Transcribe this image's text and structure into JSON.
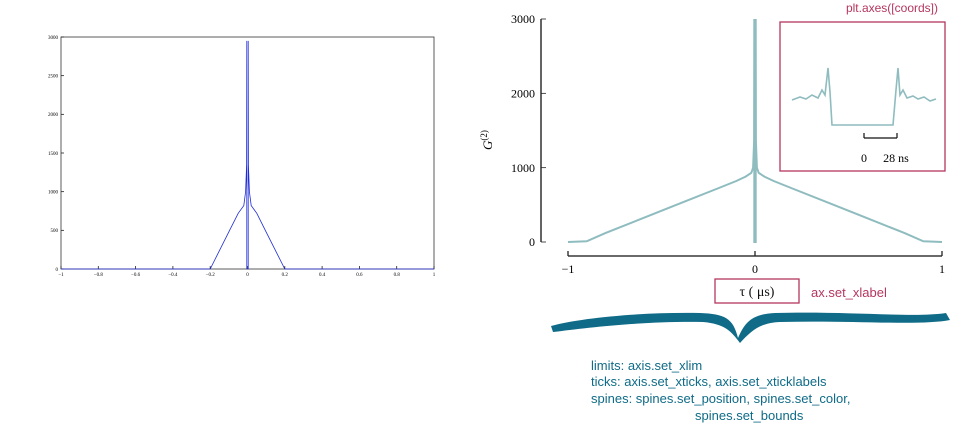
{
  "chart_data": [
    {
      "type": "line",
      "title": "",
      "xlabel": "",
      "ylabel": "",
      "xlim": [
        -1,
        1
      ],
      "ylim": [
        0,
        3000
      ],
      "xtick_labels": [
        "−1",
        "−0.8",
        "−0.6",
        "−0.4",
        "−0.2",
        "0",
        "0.2",
        "0.4",
        "0.6",
        "0.8",
        "1"
      ],
      "ytick_labels": [
        "0",
        "500",
        "1000",
        "1500",
        "2000",
        "2500",
        "3000"
      ],
      "color": "#1f2bd6",
      "series": [
        {
          "x": [
            -1,
            -0.8,
            -0.6,
            -0.5,
            -0.4,
            -0.3,
            -0.2,
            -0.1,
            -0.05,
            -0.02,
            -0.01,
            -0.005,
            -0.004,
            -0.004,
            0.004,
            0.004,
            0.005,
            0.01,
            0.02,
            0.05,
            0.1,
            0.2,
            0.3,
            0.4,
            0.5,
            0.6,
            0.8,
            1
          ],
          "y": [
            0,
            0,
            0,
            0,
            0,
            0,
            0,
            480,
            720,
            820,
            1000,
            1350,
            2950,
            0,
            0,
            2950,
            1350,
            1000,
            820,
            720,
            480,
            0,
            0,
            0,
            0,
            0,
            0,
            0
          ]
        }
      ]
    },
    {
      "type": "line",
      "title": "",
      "xlabel": "τ ( μs)",
      "ylabel": "G(2)",
      "ylabel_base": "G",
      "ylabel_sup": "(2)",
      "xlim": [
        -1,
        1
      ],
      "ylim": [
        0,
        3000
      ],
      "xtick_labels": [
        "−1",
        "0",
        "1"
      ],
      "ytick_labels": [
        "0",
        "1000",
        "2000",
        "3000"
      ],
      "color": "#8fbcbf",
      "series": [
        {
          "x": [
            -1,
            -0.9,
            -0.8,
            -0.6,
            -0.4,
            -0.2,
            -0.1,
            -0.05,
            -0.02,
            -0.01,
            -0.005,
            -0.004,
            -0.004,
            0.004,
            0.004,
            0.005,
            0.01,
            0.02,
            0.05,
            0.1,
            0.2,
            0.4,
            0.6,
            0.8,
            0.9,
            1
          ],
          "y": [
            0,
            10,
            120,
            320,
            520,
            720,
            820,
            880,
            930,
            1000,
            1350,
            3000,
            0,
            0,
            3000,
            1350,
            1000,
            930,
            880,
            820,
            720,
            520,
            320,
            120,
            10,
            0
          ]
        }
      ],
      "inset": {
        "xtick_label": "0",
        "scale_label": "28 ns",
        "label": "plt.axes([coords])"
      },
      "annotations": {
        "xlabel_note": "ax.set_xlabel",
        "notes": [
          "limits: axis.set_xlim",
          "ticks: axis.set_xticks, axis.set_xticklabels",
          "spines: spines.set_position, spines.set_color,",
          "spines.set_bounds"
        ]
      },
      "colors": {
        "accent": "#b5365f",
        "brace": "#0f6b87"
      }
    }
  ]
}
